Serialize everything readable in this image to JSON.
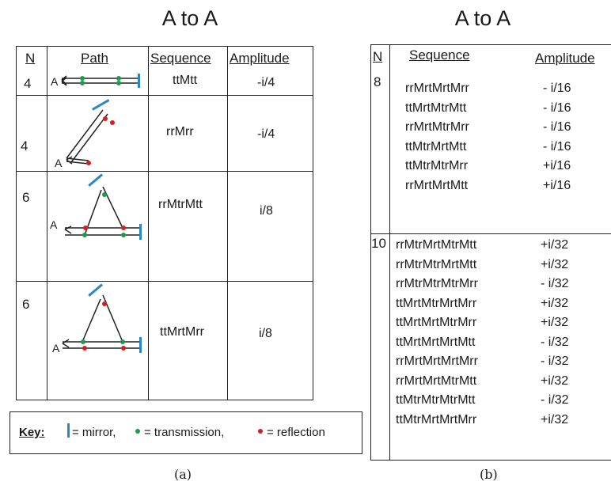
{
  "panel_a": {
    "title": "A to A",
    "headers": {
      "n": "N",
      "path": "Path",
      "sequence": "Sequence",
      "amplitude": "Amplitude"
    },
    "rows": [
      {
        "n": "4",
        "sequence": "ttMtt",
        "amplitude": "-i/4",
        "path_label": "A"
      },
      {
        "n": "4",
        "sequence": "rrMrr",
        "amplitude": "-i/4",
        "path_label": "A"
      },
      {
        "n": "6",
        "sequence": "rrMtrMtt",
        "amplitude": "i/8",
        "path_label": "A"
      },
      {
        "n": "6",
        "sequence": "ttMrtMrr",
        "amplitude": "i/8",
        "path_label": "A"
      }
    ],
    "key": {
      "label": "Key:",
      "mirror": "= mirror,",
      "transmission": "= transmission,",
      "reflection": "= reflection"
    },
    "caption": "(a)"
  },
  "panel_b": {
    "title": "A to A",
    "headers": {
      "n": "N",
      "sequence": "Sequence",
      "amplitude": "Amplitude"
    },
    "groups": [
      {
        "n": "8",
        "sequences": [
          "rrMrtMrtMrr",
          "ttMrtMtrMtt",
          "rrMrtMtrMrr",
          "ttMtrMrtMtt",
          "ttMtrMtrMrr",
          "rrMrtMrtMtt"
        ],
        "amplitudes": [
          "- i/16",
          "- i/16",
          "- i/16",
          "- i/16",
          "+i/16",
          "+i/16"
        ]
      },
      {
        "n": "10",
        "sequences": [
          "rrMtrMrtMtrMtt",
          "rrMtrMtrMrtMtt",
          "rrMtrMtrMtrMrr",
          "ttMrtMtrMrtMrr",
          "ttMrtMrtMtrMrr",
          "ttMrtMrtMrtMtt",
          "rrMrtMrtMrtMrr",
          "rrMrtMrtMtrMtt",
          "ttMtrMtrMtrMtt",
          "ttMtrMrtMrtMrr"
        ],
        "amplitudes": [
          "+i/32",
          "+i/32",
          "- i/32",
          "+i/32",
          "+i/32",
          "- i/32",
          "- i/32",
          "+i/32",
          "- i/32",
          "+i/32"
        ]
      }
    ],
    "caption": "(b)"
  },
  "colors": {
    "mirror": "#2b86c5",
    "transmission": "#1d9a4a",
    "reflection": "#d42020",
    "line": "#222222"
  },
  "icons": {
    "mirror": "mirror-bar-icon",
    "transmission": "green-dot-icon",
    "reflection": "red-dot-icon"
  }
}
